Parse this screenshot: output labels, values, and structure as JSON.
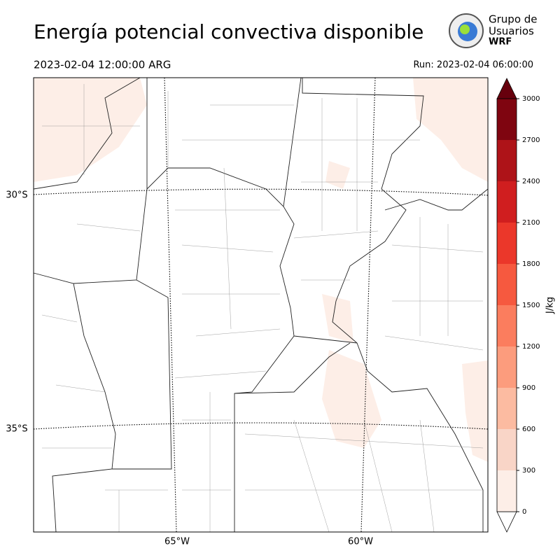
{
  "header": {
    "title": "Energía potencial convectiva disponible",
    "valid_time": "2023-02-04 12:00:00 ARG",
    "run": "Run: 2023-02-04 06:00:00"
  },
  "logo": {
    "line1": "Grupo de",
    "line2": "Usuarios",
    "line3": "WRF"
  },
  "map": {
    "lat_labels": [
      "30°S",
      "35°S"
    ],
    "lon_labels": [
      "65°W",
      "60°W"
    ]
  },
  "colorbar": {
    "label": "J/kg",
    "ylim": [
      0,
      3000
    ],
    "ticks": [
      0,
      300,
      600,
      900,
      1200,
      1500,
      1800,
      2100,
      2400,
      2700,
      3000
    ],
    "colors": [
      "#fdeee7",
      "#f9d5c7",
      "#fcbba1",
      "#fc9c7d",
      "#fb7d5e",
      "#f6593f",
      "#eb372a",
      "#d01e1f",
      "#ae1318",
      "#7f0510"
    ]
  }
}
